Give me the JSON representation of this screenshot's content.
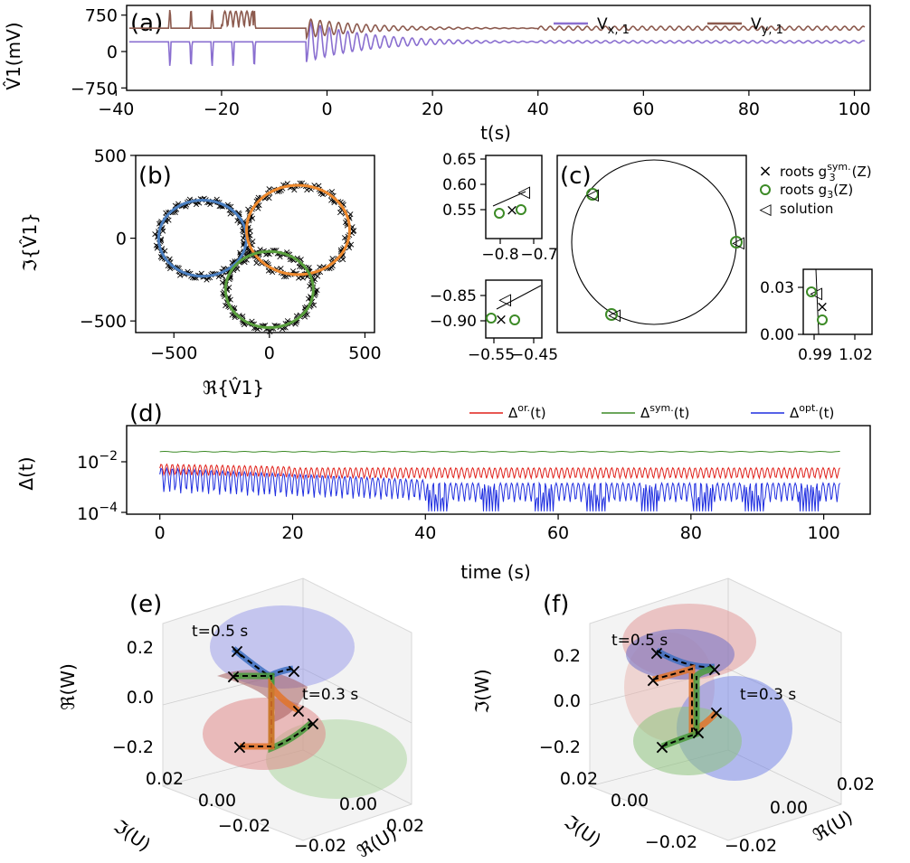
{
  "chart_data": [
    {
      "panel": "(a)",
      "type": "line",
      "ylabel": "V̂1(mV)",
      "xlabel": "t(s)",
      "xlim": [
        -38,
        103
      ],
      "ylim": [
        -800,
        950
      ],
      "xticks": [
        "−40",
        "−20",
        "0",
        "20",
        "40",
        "60",
        "80",
        "100"
      ],
      "xtick_values": [
        -40,
        -20,
        0,
        20,
        40,
        60,
        80,
        100
      ],
      "yticks": [
        "750",
        "0",
        "−750"
      ],
      "ytick_values": [
        750,
        0,
        -750
      ],
      "legend": {
        "placement": "top-right"
      },
      "series": [
        {
          "name": "V",
          "sub": "x, 1",
          "color": "#8a6fd0",
          "baseline": 200
        },
        {
          "name": "V",
          "sub": "y, 1",
          "color": "#8c5a4e",
          "baseline": 480
        }
      ]
    },
    {
      "panel": "(b)",
      "type": "scatter",
      "xlabel": "ℜ{V̂1}",
      "ylabel": "ℑ{V̂1}",
      "xlim": [
        -700,
        550
      ],
      "ylim": [
        -570,
        500
      ],
      "xticks": [
        "−500",
        "0",
        "500"
      ],
      "xtick_values": [
        -500,
        0,
        500
      ],
      "yticks": [
        "500",
        "0",
        "−500"
      ],
      "ytick_values": [
        500,
        0,
        -500
      ],
      "circles": [
        {
          "cx": -350,
          "cy": 0,
          "r": 230,
          "color": "#4a7fc1"
        },
        {
          "cx": 150,
          "cy": 50,
          "r": 270,
          "color": "#ef8a2e"
        },
        {
          "cx": 0,
          "cy": -310,
          "r": 230,
          "color": "#5aa03e"
        }
      ]
    },
    {
      "panel": "(c)",
      "type": "scatter",
      "legend": {
        "placement": "top-right",
        "entries": [
          {
            "marker": "×",
            "label": "roots g",
            "sup": "sym.",
            "sub": "3",
            "tail": "(Z)",
            "color": "#d62020"
          },
          {
            "marker": "o",
            "label": "roots g",
            "sup": "",
            "sub": "3",
            "tail": "(Z)",
            "color": "#3c8a26"
          },
          {
            "marker": "◁",
            "label": "solution",
            "sup": "",
            "sub": "",
            "tail": "",
            "color": "#1f2ee0"
          }
        ]
      },
      "insets": [
        {
          "xticks": [
            "−0.8",
            "−0.7"
          ],
          "yticks": [
            "0.65",
            "0.60",
            "0.55"
          ]
        },
        {
          "xticks": [
            "−0.55",
            "−0.45"
          ],
          "yticks": [
            "−0.85",
            "−0.90"
          ]
        },
        {
          "xticks": [
            "0.99",
            "1.02"
          ],
          "yticks": [
            "0.03",
            "0.00"
          ]
        }
      ]
    },
    {
      "panel": "(d)",
      "type": "line",
      "xlabel": "time (s)",
      "ylabel": "Δ(t)",
      "yscale": "log",
      "xlim": [
        -5,
        107
      ],
      "xticks": [
        "0",
        "20",
        "40",
        "60",
        "80",
        "100"
      ],
      "xtick_values": [
        0,
        20,
        40,
        60,
        80,
        100
      ],
      "ytick_exponents": [
        "−2",
        "−4"
      ],
      "legend": {
        "placement": "top"
      },
      "series": [
        {
          "name": "Δ",
          "sup": "or.",
          "tail": "(t)",
          "color": "#e0201a",
          "level": 0.005
        },
        {
          "name": "Δ",
          "sup": "sym.",
          "tail": "(t)",
          "color": "#3c8a26",
          "level": 0.025
        },
        {
          "name": "Δ",
          "sup": "opt.",
          "tail": "(t)",
          "color": "#1f2ee0",
          "level": 0.0012
        }
      ]
    },
    {
      "panel": "(e)",
      "type": "3d-surface",
      "zlabel": "ℜ(W)",
      "xlabel": "ℜ(U)",
      "ylabel": "ℑ(U)",
      "zticks": [
        "0.2",
        "0.0",
        "−0.2"
      ],
      "xticks": [
        "0.02",
        "0.00",
        "−0.02"
      ],
      "yticks": [
        "0.02",
        "0.00",
        "−0.02"
      ],
      "annotations": [
        "t=0.5 s",
        "t=0.3 s"
      ]
    },
    {
      "panel": "(f)",
      "type": "3d-surface",
      "zlabel": "ℑ(W)",
      "xlabel": "ℜ(U)",
      "ylabel": "ℑ(U)",
      "zticks": [
        "0.2",
        "0.0",
        "−0.2"
      ],
      "xticks": [
        "0.02",
        "0.00",
        "−0.02"
      ],
      "yticks": [
        "0.02",
        "0.00",
        "−0.02"
      ],
      "annotations": [
        "t=0.5 s",
        "t=0.3 s"
      ]
    }
  ]
}
